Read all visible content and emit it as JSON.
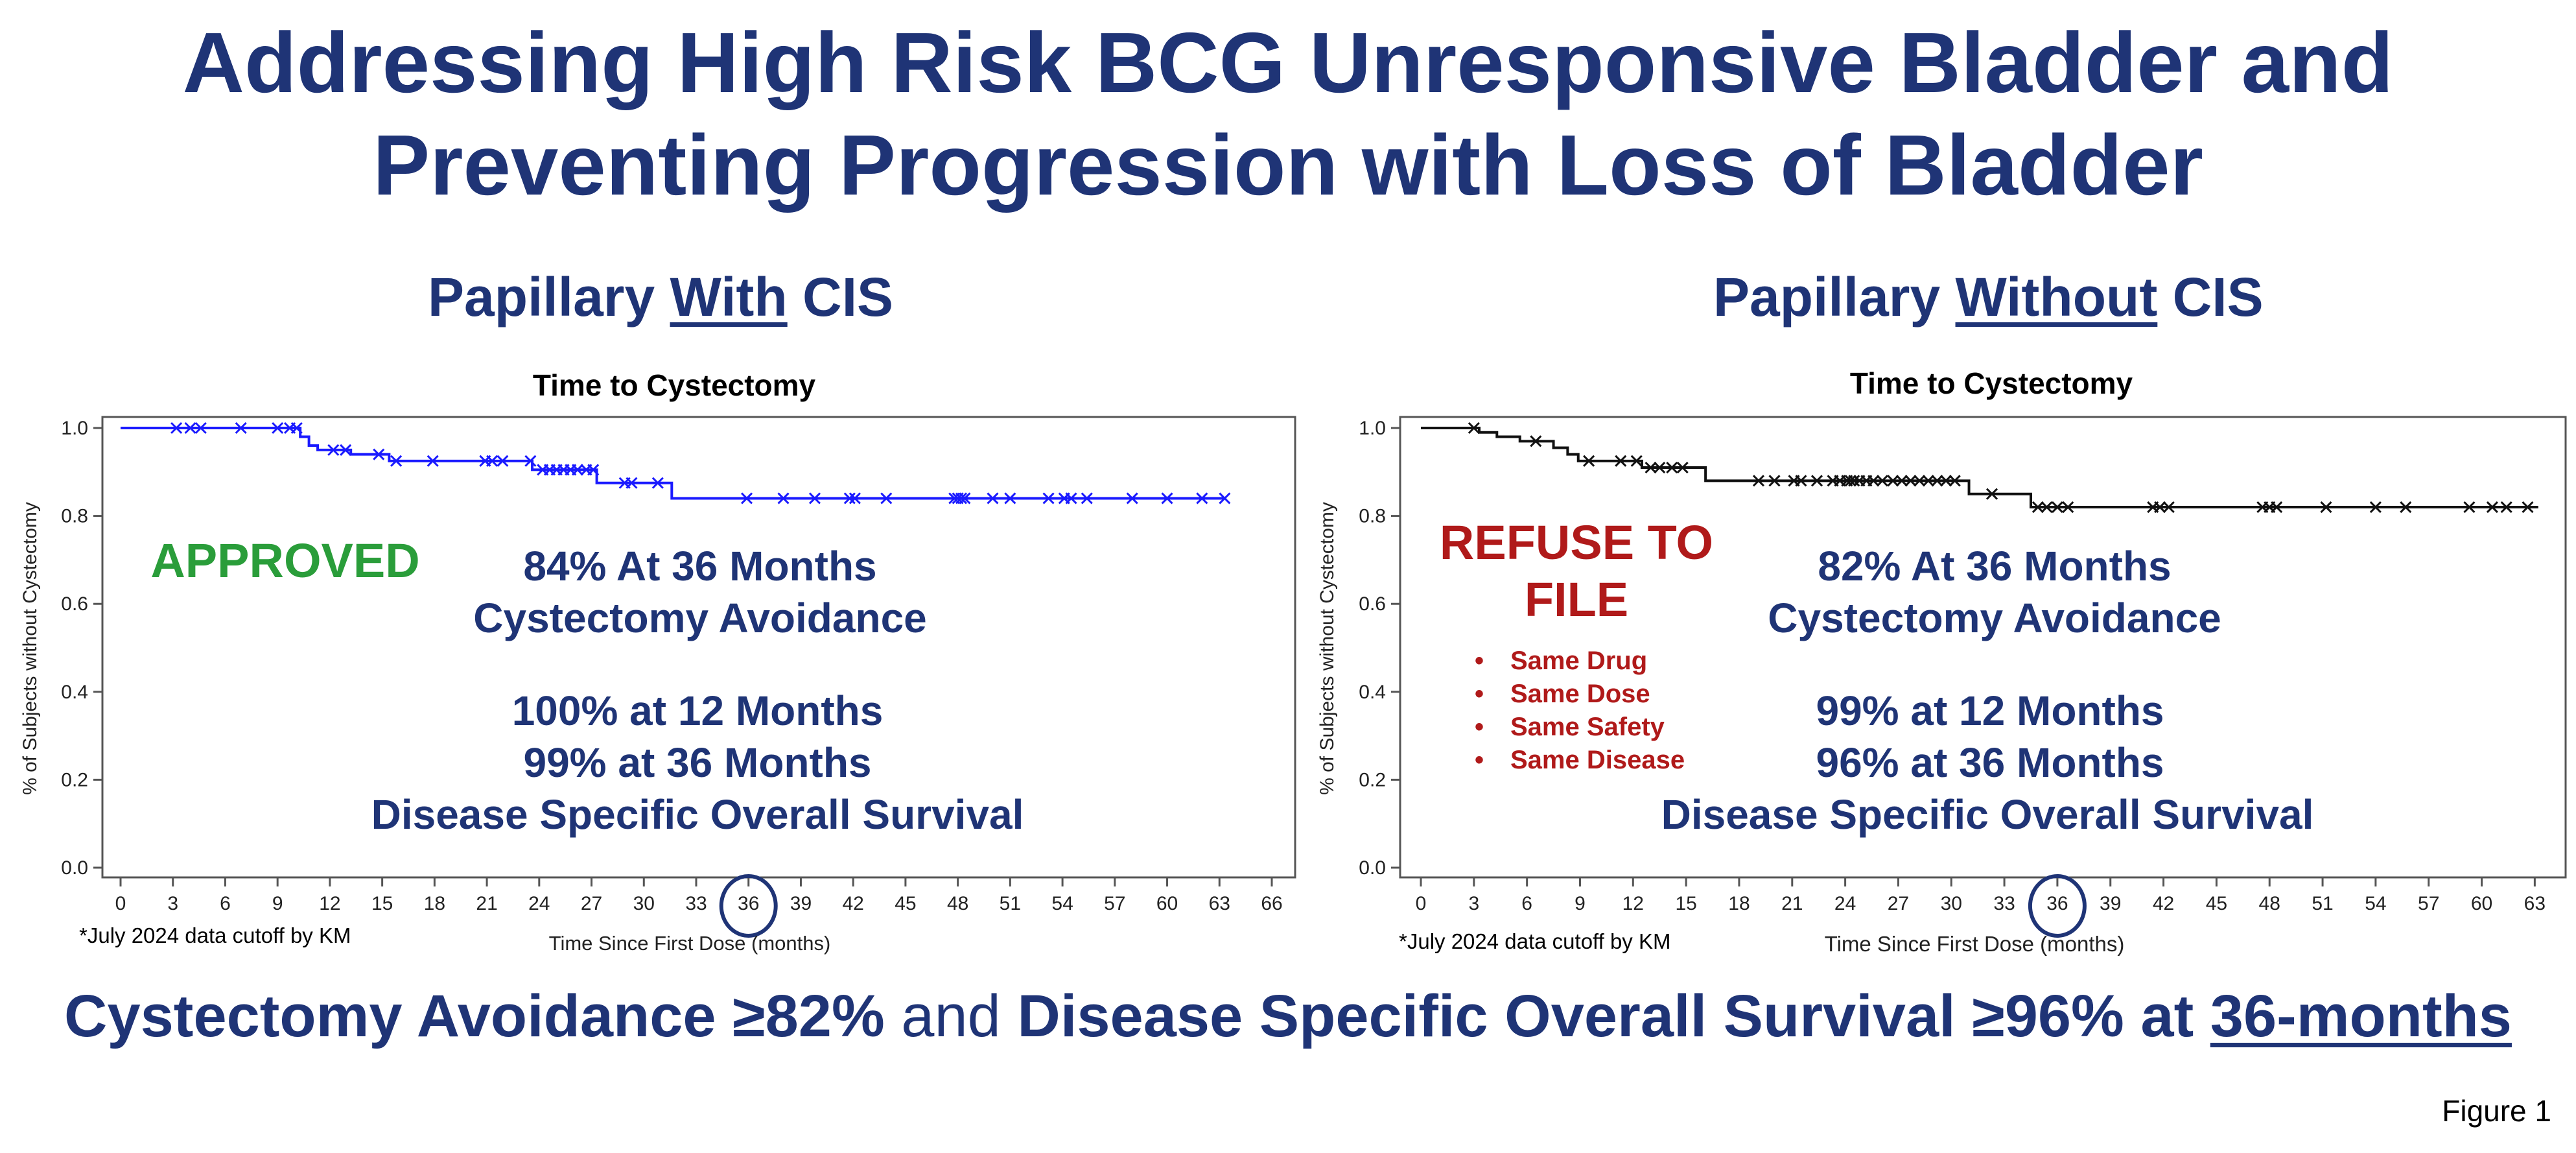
{
  "title_lines": [
    "Addressing High Risk BCG Unresponsive Bladder and",
    "Preventing Progression with Loss of Bladder"
  ],
  "left_panel": {
    "heading_pre": "Papillary ",
    "heading_underlined": "With",
    "heading_post": " CIS",
    "status_label": "APPROVED",
    "status_color": "#2a9d3a",
    "stat1_line1": "84% At 36 Months",
    "stat1_line2": "Cystectomy Avoidance",
    "stat2_line1": "100% at 12 Months",
    "stat2_line2": "99% at 36 Months",
    "stat2_line3": "Disease Specific Overall Survival",
    "footnote": "*July 2024 data cutoff by KM"
  },
  "right_panel": {
    "heading_pre": "Papillary ",
    "heading_underlined": "Without",
    "heading_post": " CIS",
    "status_line1": "REFUSE TO",
    "status_line2": "FILE",
    "status_color": "#b01a1a",
    "bullets": [
      "Same Drug",
      "Same Dose",
      "Same Safety",
      "Same Disease"
    ],
    "stat1_line1": "82% At 36 Months",
    "stat1_line2": "Cystectomy Avoidance",
    "stat2_line1": "99% at 12 Months",
    "stat2_line2": "96% at 36 Months",
    "stat2_line3": "Disease Specific Overall Survival",
    "footnote": "*July 2024 data cutoff by KM"
  },
  "footer": {
    "part1": "Cystectomy Avoidance ≥82%",
    "part2": " and ",
    "part3": "Disease Specific Overall Survival ≥96% at ",
    "part4": "36-months"
  },
  "figure_label": "Figure 1",
  "text_color": "#1f3476",
  "chart_data": [
    {
      "type": "line",
      "step": true,
      "title": "Time to Cystectomy",
      "xlabel": "Time Since First Dose (months)",
      "ylabel": "% of Subjects without Cystectomy",
      "xlim": [
        0,
        66
      ],
      "ylim": [
        0,
        1
      ],
      "xticks": [
        0,
        3,
        6,
        9,
        12,
        15,
        18,
        21,
        24,
        27,
        30,
        33,
        36,
        39,
        42,
        45,
        48,
        51,
        54,
        57,
        60,
        63,
        66
      ],
      "yticks": [
        0.0,
        0.2,
        0.4,
        0.6,
        0.8,
        1.0
      ],
      "highlight_x": 36,
      "color": "#1a1aff",
      "series": [
        {
          "step_points": [
            [
              0,
              1.0
            ],
            [
              10.3,
              0.98
            ],
            [
              10.8,
              0.96
            ],
            [
              11.3,
              0.95
            ],
            [
              13.2,
              0.94
            ],
            [
              15.4,
              0.925
            ],
            [
              23.6,
              0.905
            ],
            [
              27.3,
              0.875
            ],
            [
              31.6,
              0.84
            ],
            [
              63.4,
              0.84
            ]
          ],
          "censored": [
            [
              3.2,
              1.0
            ],
            [
              4.0,
              1.0
            ],
            [
              4.6,
              1.0
            ],
            [
              6.9,
              1.0
            ],
            [
              9.0,
              1.0
            ],
            [
              9.7,
              1.0
            ],
            [
              10.1,
              1.0
            ],
            [
              12.2,
              0.95
            ],
            [
              12.9,
              0.95
            ],
            [
              14.8,
              0.94
            ],
            [
              15.8,
              0.925
            ],
            [
              17.9,
              0.925
            ],
            [
              20.9,
              0.925
            ],
            [
              21.3,
              0.925
            ],
            [
              21.9,
              0.925
            ],
            [
              23.5,
              0.925
            ],
            [
              24.2,
              0.905
            ],
            [
              24.6,
              0.905
            ],
            [
              25.0,
              0.905
            ],
            [
              25.4,
              0.905
            ],
            [
              25.8,
              0.905
            ],
            [
              26.2,
              0.905
            ],
            [
              26.7,
              0.905
            ],
            [
              27.1,
              0.905
            ],
            [
              28.9,
              0.875
            ],
            [
              29.3,
              0.875
            ],
            [
              30.8,
              0.875
            ],
            [
              35.9,
              0.84
            ],
            [
              38.0,
              0.84
            ],
            [
              39.8,
              0.84
            ],
            [
              41.8,
              0.84
            ],
            [
              42.1,
              0.84
            ],
            [
              43.9,
              0.84
            ],
            [
              47.8,
              0.84
            ],
            [
              48.0,
              0.84
            ],
            [
              48.2,
              0.84
            ],
            [
              48.4,
              0.84
            ],
            [
              50.0,
              0.84
            ],
            [
              51.0,
              0.84
            ],
            [
              53.2,
              0.84
            ],
            [
              54.1,
              0.84
            ],
            [
              54.5,
              0.84
            ],
            [
              55.4,
              0.84
            ],
            [
              58.0,
              0.84
            ],
            [
              60.0,
              0.84
            ],
            [
              62.0,
              0.84
            ],
            [
              63.3,
              0.84
            ]
          ]
        }
      ]
    },
    {
      "type": "line",
      "step": true,
      "title": "Time to Cystectomy",
      "xlabel": "Time Since First Dose (months)",
      "ylabel": "% of Subjects without Cystectomy",
      "xlim": [
        0,
        63.5
      ],
      "ylim": [
        0,
        1
      ],
      "xticks": [
        0,
        3,
        6,
        9,
        12,
        15,
        18,
        21,
        24,
        27,
        30,
        33,
        36,
        39,
        42,
        45,
        48,
        51,
        54,
        57,
        60,
        63
      ],
      "yticks": [
        0.0,
        0.2,
        0.4,
        0.6,
        0.8,
        1.0
      ],
      "highlight_x": 36,
      "color": "#111111",
      "series": [
        {
          "step_points": [
            [
              0,
              1.0
            ],
            [
              3.3,
              0.99
            ],
            [
              4.3,
              0.98
            ],
            [
              5.6,
              0.97
            ],
            [
              7.5,
              0.955
            ],
            [
              8.3,
              0.94
            ],
            [
              8.9,
              0.925
            ],
            [
              12.5,
              0.91
            ],
            [
              16.1,
              0.88
            ],
            [
              31.0,
              0.85
            ],
            [
              34.5,
              0.82
            ],
            [
              63.2,
              0.82
            ]
          ],
          "censored": [
            [
              3.0,
              1.0
            ],
            [
              6.5,
              0.97
            ],
            [
              9.5,
              0.925
            ],
            [
              11.3,
              0.925
            ],
            [
              12.2,
              0.925
            ],
            [
              13.0,
              0.91
            ],
            [
              13.5,
              0.91
            ],
            [
              14.2,
              0.91
            ],
            [
              14.8,
              0.91
            ],
            [
              19.1,
              0.88
            ],
            [
              20.0,
              0.88
            ],
            [
              21.1,
              0.88
            ],
            [
              21.5,
              0.88
            ],
            [
              22.4,
              0.88
            ],
            [
              23.3,
              0.88
            ],
            [
              23.7,
              0.88
            ],
            [
              24.1,
              0.88
            ],
            [
              24.3,
              0.88
            ],
            [
              24.5,
              0.88
            ],
            [
              24.8,
              0.88
            ],
            [
              25.2,
              0.88
            ],
            [
              25.6,
              0.88
            ],
            [
              26.1,
              0.88
            ],
            [
              26.7,
              0.88
            ],
            [
              27.2,
              0.88
            ],
            [
              27.7,
              0.88
            ],
            [
              28.2,
              0.88
            ],
            [
              28.7,
              0.88
            ],
            [
              29.2,
              0.88
            ],
            [
              29.7,
              0.88
            ],
            [
              30.2,
              0.88
            ],
            [
              32.3,
              0.85
            ],
            [
              34.9,
              0.82
            ],
            [
              35.4,
              0.82
            ],
            [
              36.0,
              0.82
            ],
            [
              36.6,
              0.82
            ],
            [
              41.4,
              0.82
            ],
            [
              41.8,
              0.82
            ],
            [
              42.3,
              0.82
            ],
            [
              47.6,
              0.82
            ],
            [
              48.0,
              0.82
            ],
            [
              48.4,
              0.82
            ],
            [
              51.2,
              0.82
            ],
            [
              54.0,
              0.82
            ],
            [
              55.7,
              0.82
            ],
            [
              59.3,
              0.82
            ],
            [
              60.6,
              0.82
            ],
            [
              61.4,
              0.82
            ],
            [
              62.6,
              0.82
            ]
          ]
        }
      ]
    }
  ]
}
